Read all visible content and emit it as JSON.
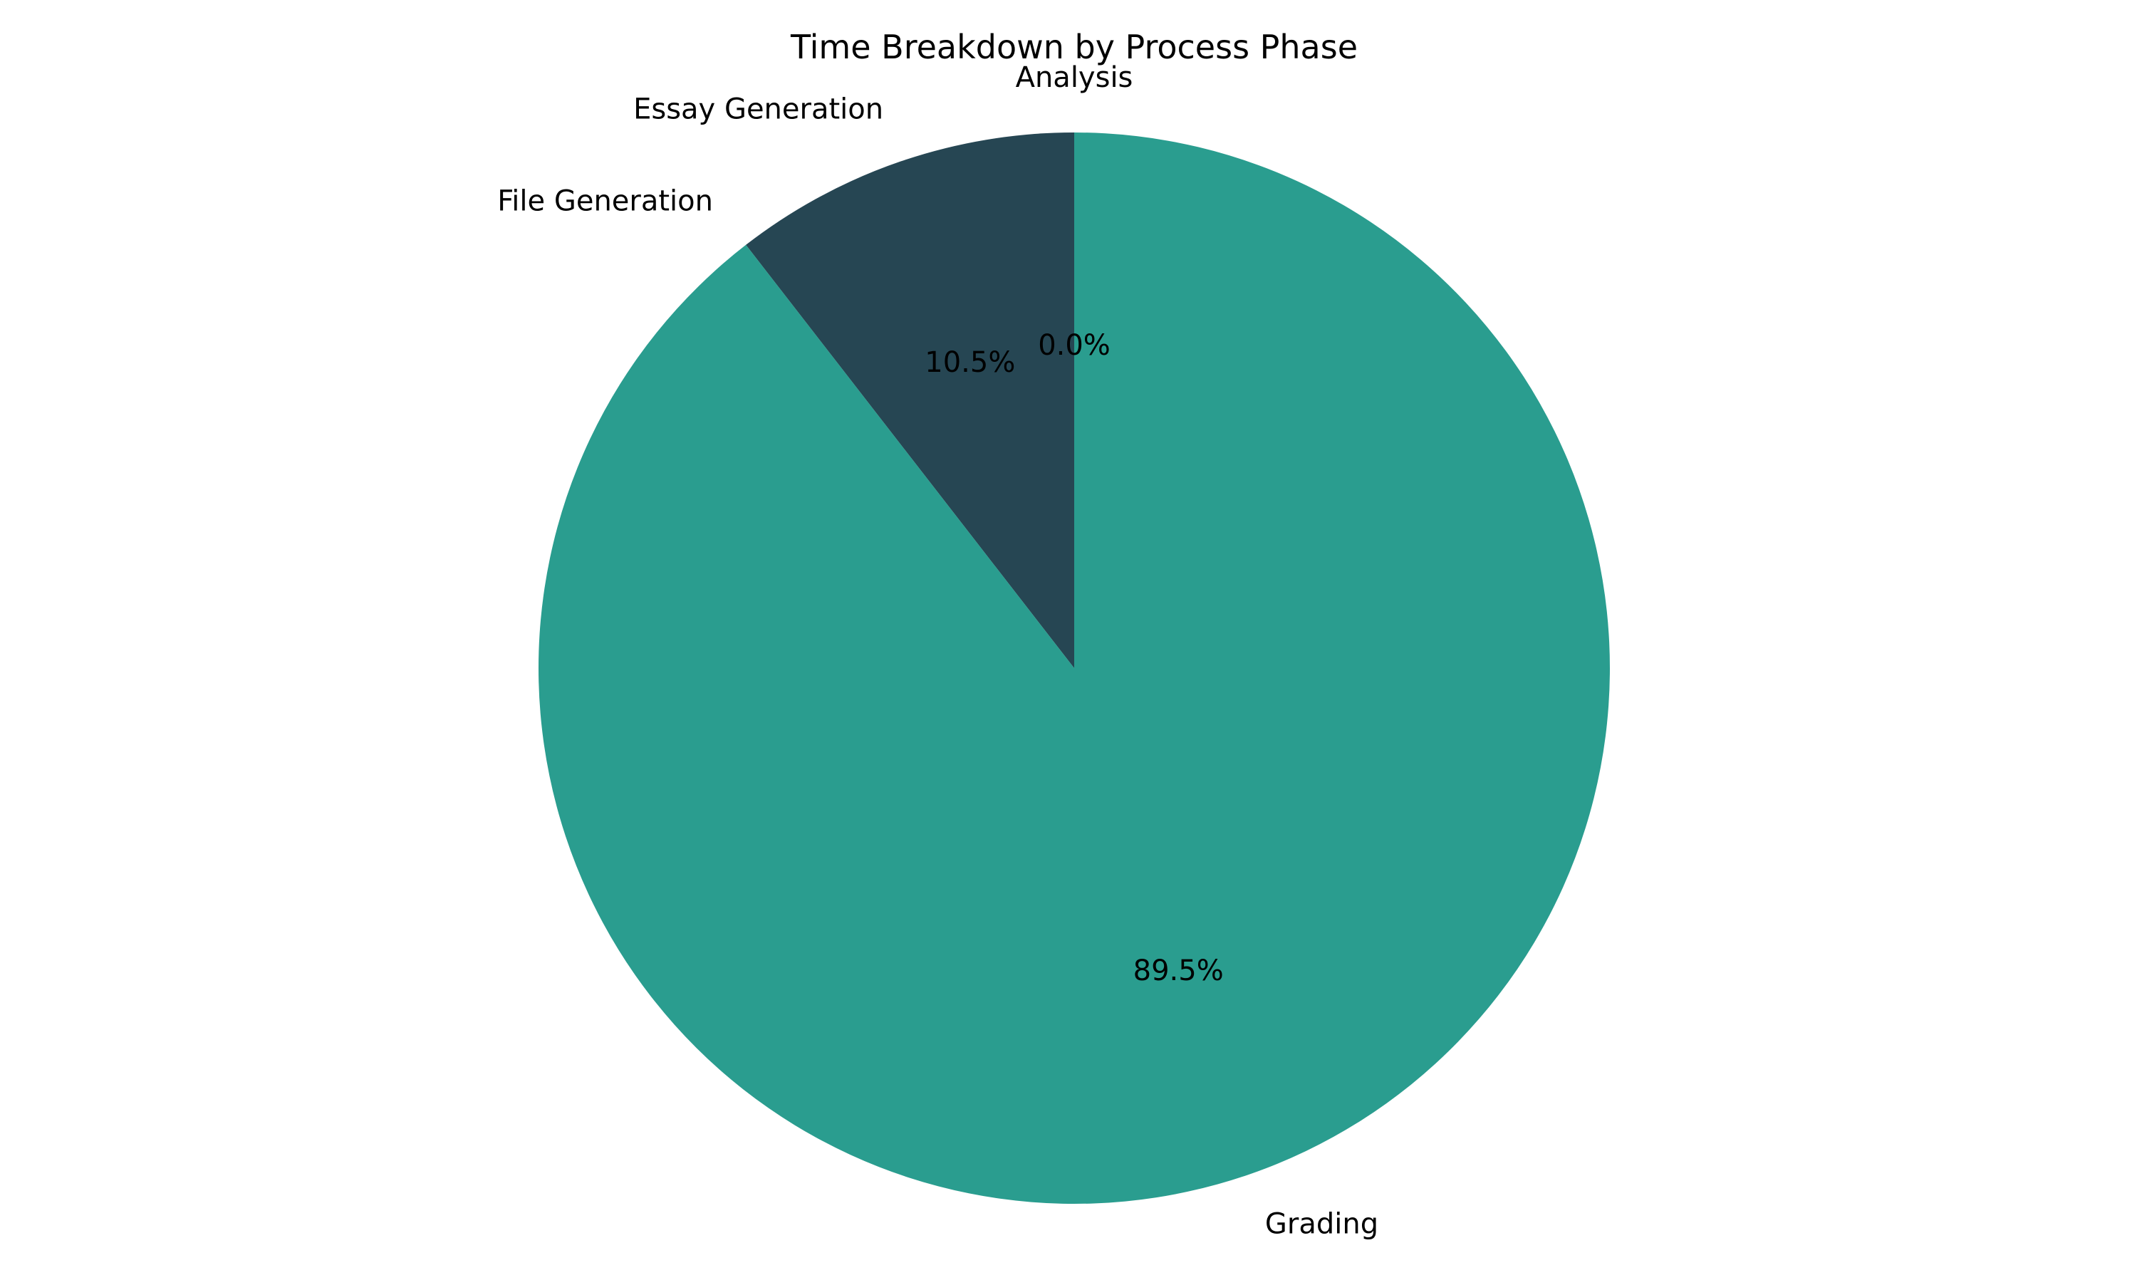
{
  "chart_data": {
    "type": "pie",
    "title": "Time Breakdown by Process Phase",
    "categories": [
      "Analysis",
      "Essay Generation",
      "File Generation",
      "Grading"
    ],
    "values": [
      0.0,
      10.5,
      0.0,
      89.5
    ],
    "percent_labels": [
      "0.0%",
      "10.5%",
      "",
      "89.5%"
    ],
    "colors": [
      "#2a9d8f",
      "#264653",
      "#e9c46a",
      "#2a9d8f"
    ],
    "start_angle_deg": 90,
    "direction": "counterclockwise",
    "legend": "none"
  }
}
